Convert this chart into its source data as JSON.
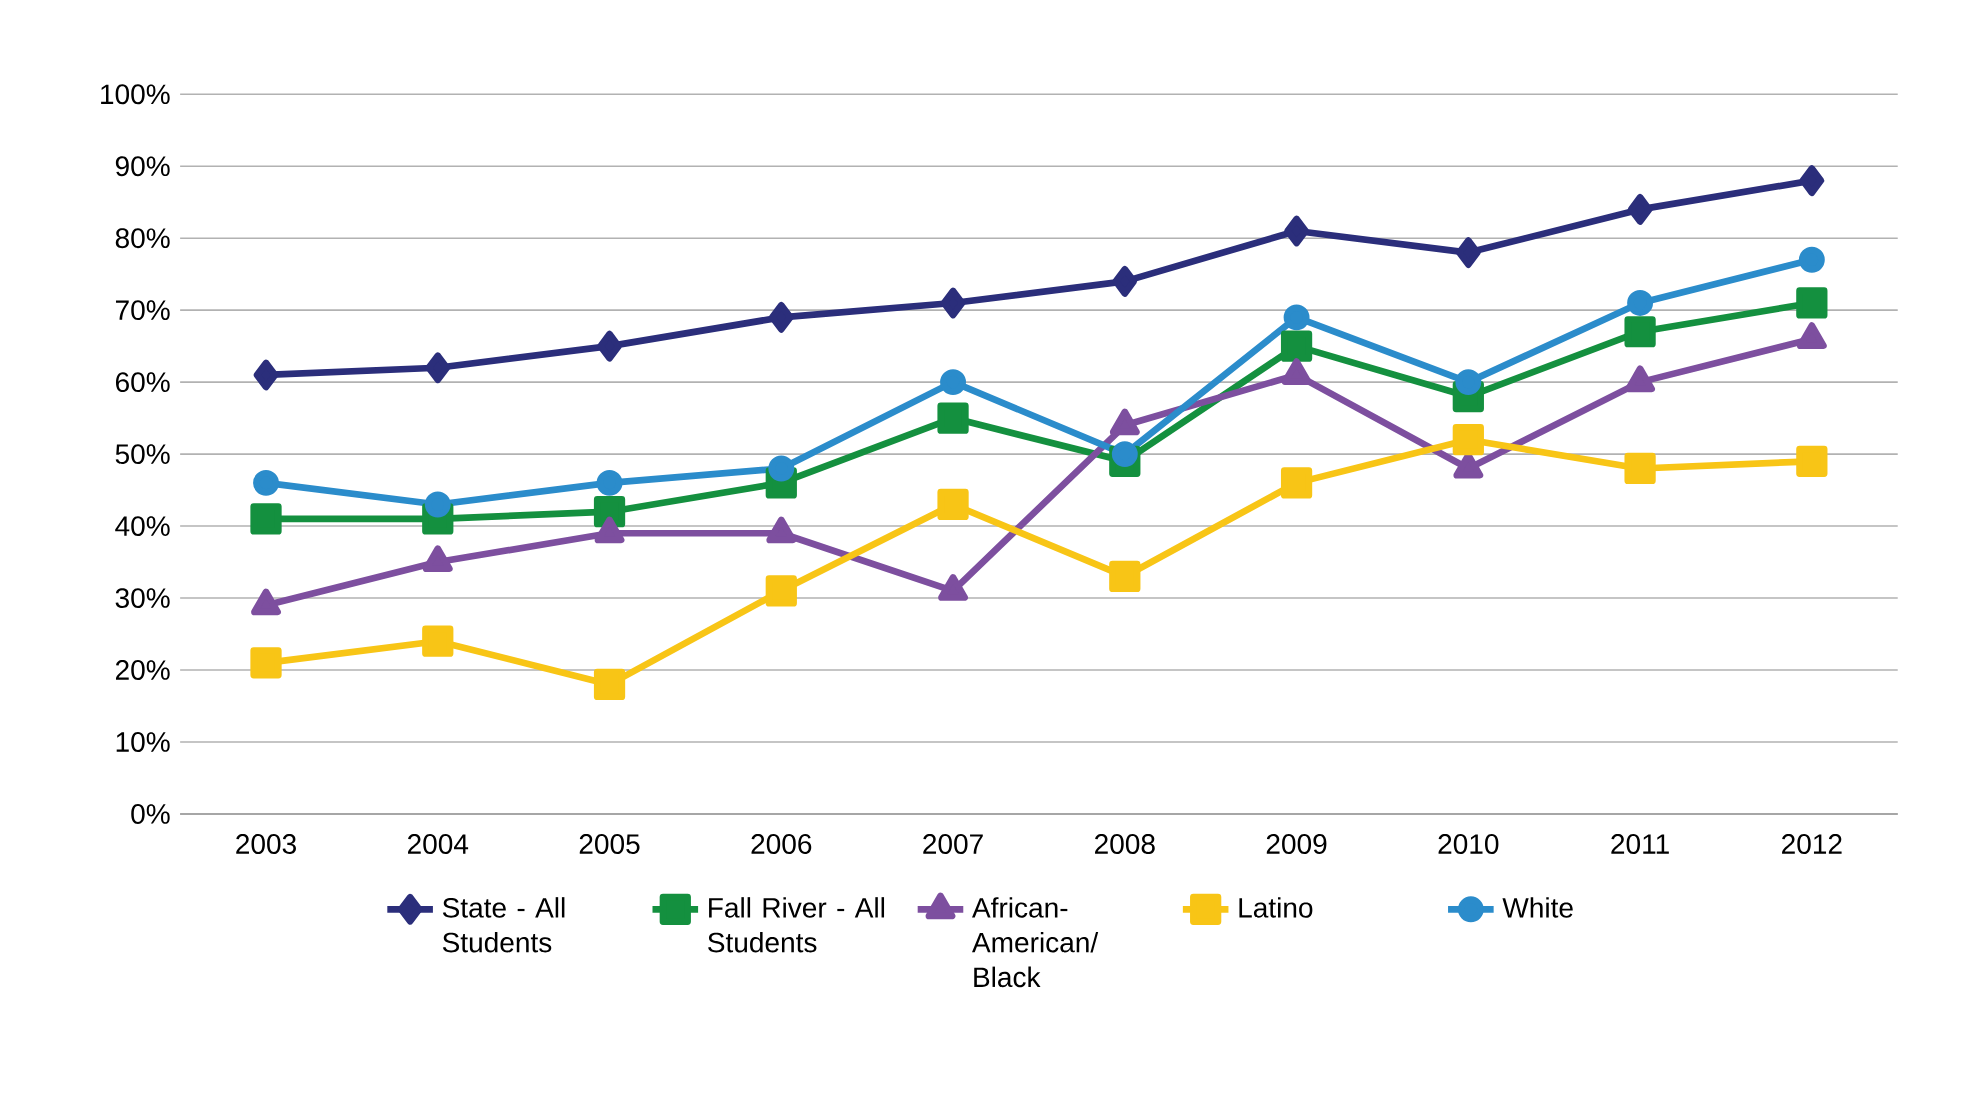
{
  "chart_data": {
    "type": "line",
    "categories": [
      "2003",
      "2004",
      "2005",
      "2006",
      "2007",
      "2008",
      "2009",
      "2010",
      "2011",
      "2012"
    ],
    "series": [
      {
        "name": "State - All Students",
        "color": "#2b2e7b",
        "marker": "diamond",
        "values": [
          61,
          62,
          65,
          69,
          71,
          74,
          81,
          78,
          84,
          88
        ]
      },
      {
        "name": "Fall River - All Students",
        "color": "#14903f",
        "marker": "square",
        "values": [
          41,
          41,
          42,
          46,
          55,
          49,
          65,
          58,
          67,
          71
        ]
      },
      {
        "name": "African-American/ Black",
        "color": "#7d4f9f",
        "marker": "triangle",
        "values": [
          29,
          35,
          39,
          39,
          31,
          54,
          61,
          48,
          60,
          66
        ]
      },
      {
        "name": "Latino",
        "color": "#f8c516",
        "marker": "square",
        "values": [
          21,
          24,
          18,
          31,
          43,
          33,
          46,
          52,
          48,
          49
        ]
      },
      {
        "name": "White",
        "color": "#2b8ccb",
        "marker": "circle",
        "values": [
          46,
          43,
          46,
          48,
          60,
          50,
          69,
          60,
          71,
          77
        ]
      }
    ],
    "ylim": [
      0,
      100
    ],
    "yticks": [
      {
        "value": 0,
        "label": "0%"
      },
      {
        "value": 10,
        "label": "10%"
      },
      {
        "value": 20,
        "label": "20%"
      },
      {
        "value": 30,
        "label": "30%"
      },
      {
        "value": 40,
        "label": "40%"
      },
      {
        "value": 50,
        "label": "50%"
      },
      {
        "value": 60,
        "label": "60%"
      },
      {
        "value": 70,
        "label": "70%"
      },
      {
        "value": 80,
        "label": "80%"
      },
      {
        "value": 90,
        "label": "90%"
      },
      {
        "value": 100,
        "label": "100%"
      }
    ],
    "grid": "y",
    "legend": "bottom",
    "line_style": "solid"
  }
}
